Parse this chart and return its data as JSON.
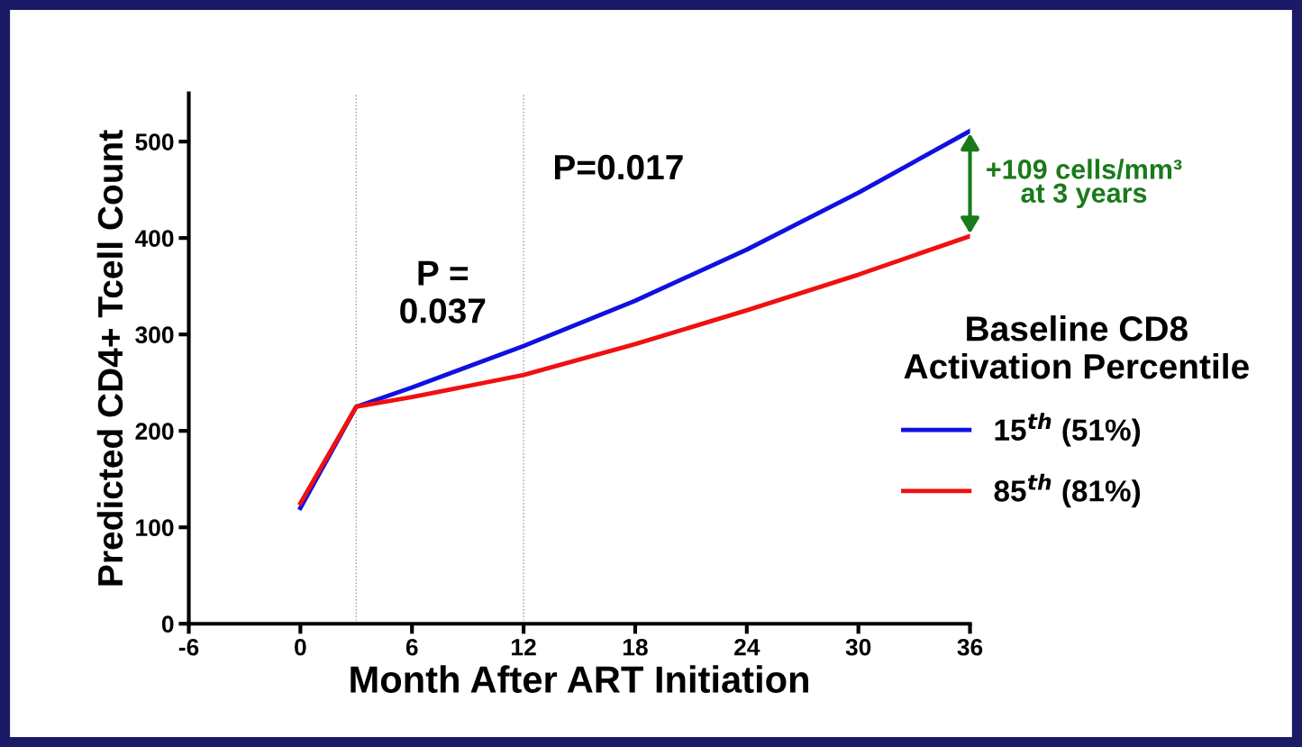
{
  "chart_data": {
    "type": "line",
    "xlabel": "Month After ART Initiation",
    "ylabel": "Predicted CD4+ Tcell Count",
    "legend_title": "Baseline CD8\nActivation Percentile",
    "x": [
      0,
      3,
      6,
      12,
      18,
      24,
      30,
      36
    ],
    "series": [
      {
        "name": "15$^{th}$ (51%)",
        "color": "#1010e0",
        "values": [
          120,
          225,
          245,
          288,
          335,
          388,
          447,
          511
        ]
      },
      {
        "name": "85$^{th}$ (81%)",
        "color": "#f01010",
        "values": [
          125,
          225,
          235,
          258,
          290,
          325,
          362,
          402
        ]
      }
    ],
    "xlim": [
      -6,
      36
    ],
    "xticks": [
      -6,
      0,
      6,
      12,
      18,
      24,
      30,
      36
    ],
    "ylim": [
      0,
      550
    ],
    "yticks": [
      0,
      100,
      200,
      300,
      400,
      500
    ],
    "ref_lines": [
      {
        "axis": "x",
        "value": 3,
        "color": "#999999",
        "line_style": "dotted"
      },
      {
        "axis": "x",
        "value": 12,
        "color": "#999999",
        "line_style": "dotted"
      }
    ],
    "annotations": [
      "P =\n0.037",
      "P=0.017",
      "+109 cells/mm³\nat 3 years"
    ],
    "grid": false,
    "legend": "right",
    "marker": "none",
    "line_style": "solid"
  }
}
